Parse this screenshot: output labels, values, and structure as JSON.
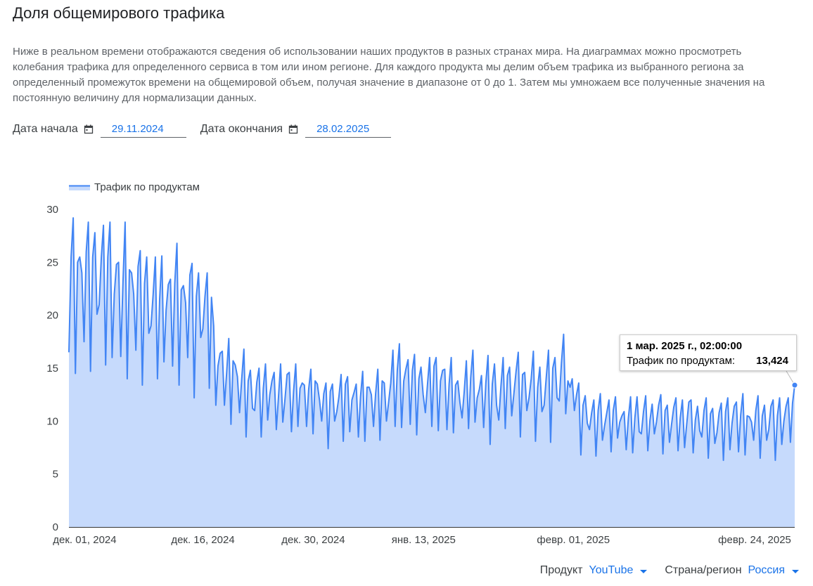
{
  "page": {
    "title": "Доля общемирового трафика",
    "description": "Ниже в реальном времени отображаются сведения об использовании наших продуктов в разных странах мира. На диаграммах можно просмотреть колебания трафика для определенного сервиса в том или ином регионе. Для каждого продукта мы делим объем трафика из выбранного региона за определенный промежуток времени на общемировой объем, получая значение в диапазоне от 0 до 1. Затем мы умножаем все полученные значения на постоянную величину для нормализации данных."
  },
  "filters": {
    "start_label": "Дата начала",
    "start_value": "29.11.2024",
    "end_label": "Дата окончания",
    "end_value": "28.02.2025",
    "product_label": "Продукт",
    "product_value": "YouTube",
    "region_label": "Страна/регион",
    "region_value": "Россия"
  },
  "icons": {
    "calendar": "calendar-icon",
    "dropdown": "dropdown-arrow-icon"
  },
  "colors": {
    "line": "#4285f4",
    "fill": "#c6dafc",
    "accent": "#1a73e8"
  },
  "tooltip": {
    "date": "1 мар. 2025 г., 02:00:00",
    "label": "Трафик по продуктам:",
    "value": "13,424"
  },
  "chart_data": {
    "type": "area",
    "legend": {
      "label": "Трафик по продуктам",
      "position": "top-left"
    },
    "x_start": "2024-11-29",
    "x_end": "2025-03-01",
    "x_ticks": [
      {
        "label": "дек. 01, 2024",
        "date": "2024-12-01"
      },
      {
        "label": "дек. 16, 2024",
        "date": "2024-12-16"
      },
      {
        "label": "дек. 30, 2024",
        "date": "2024-12-30"
      },
      {
        "label": "янв. 13, 2025",
        "date": "2025-01-13"
      },
      {
        "label": "февр. 01, 2025",
        "date": "2025-02-01"
      },
      {
        "label": "февр. 24, 2025",
        "date": "2025-02-24"
      }
    ],
    "ylim": [
      0,
      30
    ],
    "y_ticks": [
      0,
      5,
      10,
      15,
      20,
      25,
      30
    ],
    "grid": false,
    "series": [
      {
        "name": "Трафик по продуктам",
        "step_hours": 8,
        "values": [
          16.5,
          25.5,
          29.2,
          14.5,
          25.0,
          25.5,
          24.0,
          17.5,
          26.0,
          28.8,
          14.7,
          25.5,
          27.8,
          20.1,
          21.0,
          25.5,
          28.5,
          15.3,
          25.5,
          28.8,
          16.0,
          22.0,
          24.8,
          25.0,
          16.1,
          23.0,
          28.8,
          14.0,
          24.3,
          24.0,
          22.0,
          16.7,
          24.6,
          26.1,
          13.4,
          23.0,
          25.5,
          18.3,
          19.0,
          22.0,
          25.5,
          14.0,
          21.5,
          25.6,
          15.6,
          20.5,
          22.9,
          23.4,
          15.2,
          23.0,
          26.8,
          13.4,
          22.4,
          22.8,
          21.2,
          16.0,
          23.8,
          24.9,
          12.2,
          21.8,
          24.0,
          17.9,
          18.7,
          21.8,
          24.0,
          13.1,
          21.7,
          19.0,
          11.5,
          15.2,
          16.4,
          16.6,
          11.5,
          14.5,
          17.8,
          9.7,
          15.7,
          15.3,
          14.2,
          10.8,
          14.0,
          16.8,
          8.5,
          13.8,
          14.8,
          11.2,
          11.0,
          13.7,
          15.0,
          8.5,
          13.1,
          15.4,
          10.1,
          12.5,
          13.8,
          14.6,
          9.2,
          12.2,
          15.4,
          9.9,
          12.0,
          14.4,
          14.6,
          9.0,
          12.8,
          15.4,
          9.5,
          13.1,
          13.6,
          13.4,
          9.5,
          13.0,
          14.9,
          8.8,
          13.8,
          13.5,
          12.0,
          10.0,
          12.6,
          13.6,
          7.4,
          12.8,
          13.5,
          10.0,
          10.9,
          12.3,
          14.4,
          8.1,
          13.5,
          14.2,
          9.0,
          12.0,
          12.7,
          13.5,
          8.5,
          12.3,
          14.7,
          8.1,
          13.2,
          13.2,
          12.5,
          9.5,
          12.6,
          14.9,
          8.2,
          13.8,
          13.6,
          10.0,
          11.8,
          13.6,
          16.7,
          9.5,
          14.8,
          17.3,
          9.4,
          13.8,
          14.9,
          15.8,
          9.7,
          14.8,
          16.3,
          8.7,
          14.0,
          15.1,
          12.5,
          10.8,
          13.5,
          16.0,
          9.5,
          15.2,
          16.0,
          9.1,
          13.8,
          14.8,
          14.9,
          9.2,
          13.5,
          16.0,
          8.9,
          13.4,
          13.8,
          11.8,
          10.3,
          12.8,
          15.7,
          9.3,
          14.1,
          16.7,
          9.9,
          12.2,
          13.0,
          14.3,
          9.4,
          13.6,
          16.2,
          7.8,
          13.5,
          15.4,
          11.5,
          10.1,
          13.3,
          16.0,
          9.3,
          14.3,
          15.1,
          10.5,
          12.6,
          14.7,
          16.5,
          8.5,
          14.4,
          14.6,
          11.0,
          12.2,
          14.0,
          16.6,
          8.1,
          13.2,
          15.1,
          10.9,
          11.5,
          14.2,
          16.7,
          8.0,
          15.0,
          16.0,
          12.2,
          11.9,
          15.5,
          18.2,
          10.7,
          13.8,
          13.2,
          14.0,
          11.0,
          12.5,
          13.6,
          6.8,
          11.5,
          12.4,
          9.8,
          9.2,
          10.8,
          12.0,
          6.7,
          11.0,
          12.6,
          8.2,
          9.6,
          10.8,
          12.0,
          7.1,
          11.0,
          12.3,
          8.4,
          9.9,
          10.5,
          10.9,
          7.3,
          10.3,
          12.3,
          7.0,
          10.3,
          12.3,
          9.0,
          8.8,
          10.9,
          12.4,
          7.2,
          10.1,
          11.6,
          8.8,
          9.9,
          11.5,
          12.5,
          6.9,
          11.0,
          11.5,
          8.0,
          9.7,
          11.3,
          12.2,
          7.2,
          10.3,
          12.0,
          7.5,
          9.7,
          11.8,
          12.0,
          7.0,
          10.1,
          11.4,
          9.1,
          8.5,
          11.0,
          12.2,
          6.5,
          10.7,
          11.2,
          7.9,
          8.9,
          10.8,
          11.7,
          6.3,
          10.9,
          12.2,
          7.3,
          9.8,
          11.4,
          11.8,
          7.1,
          10.6,
          12.6,
          6.8,
          10.5,
          10.4,
          9.9,
          8.2,
          11.0,
          12.4,
          6.5,
          10.5,
          11.5,
          8.2,
          9.2,
          11.4,
          12.0,
          6.3,
          10.5,
          12.2,
          7.8,
          10.0,
          11.4,
          12.2,
          8.0,
          11.7,
          13.4
        ]
      }
    ]
  }
}
